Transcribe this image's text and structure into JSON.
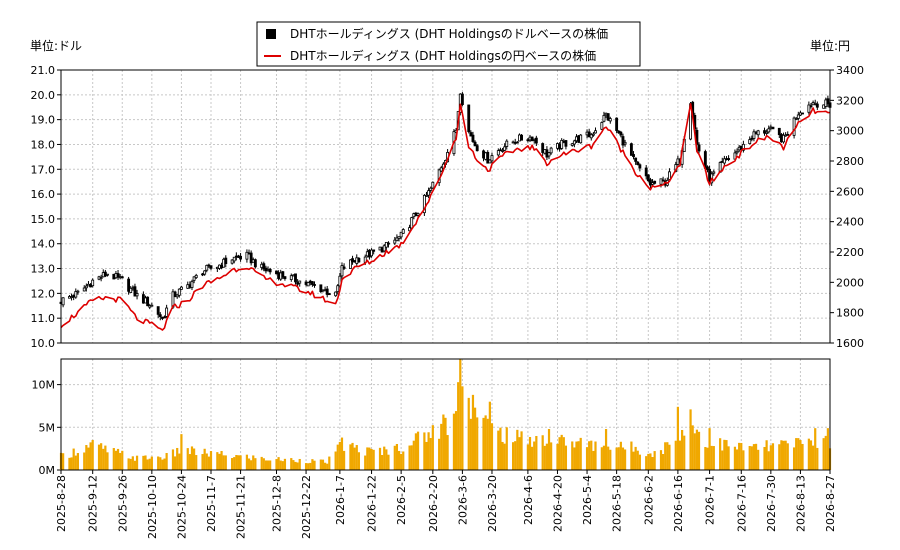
{
  "legend": {
    "items": [
      {
        "label": "DHTホールディングス (DHT Holdingsのドルベースの株価",
        "color": "#000000",
        "marker": "square"
      },
      {
        "label": "DHTホールディングス (DHT Holdingsの円ベースの株価",
        "color": "#dd0000",
        "marker": "line"
      }
    ]
  },
  "chart_data": [
    {
      "type": "candlestick",
      "y_left_label": "単位:ドル",
      "y_right_label": "単位:円",
      "ylim_left": [
        10.0,
        21.0
      ],
      "ylim_right": [
        1600,
        3400
      ],
      "yticks_left": [
        "21.0",
        "20.0",
        "19.0",
        "18.0",
        "17.0",
        "16.0",
        "15.0",
        "14.0",
        "13.0",
        "12.0",
        "11.0",
        "10.0"
      ],
      "yticks_right": [
        "3400",
        "3200",
        "3000",
        "2800",
        "2600",
        "2400",
        "2200",
        "2000",
        "1800",
        "1600"
      ],
      "grid": true,
      "series": [
        {
          "name": "DHTホールディングス (DHT Holdingsのドルベースの株価",
          "color": "#000000",
          "close_anchors": [
            [
              "2025-08-28",
              11.7
            ],
            [
              "2025-09-05",
              12.0
            ],
            [
              "2025-09-12",
              12.5
            ],
            [
              "2025-09-19",
              12.8
            ],
            [
              "2025-09-26",
              12.5
            ],
            [
              "2025-10-03",
              11.9
            ],
            [
              "2025-10-10",
              11.5
            ],
            [
              "2025-10-15",
              11.0
            ],
            [
              "2025-10-20",
              11.9
            ],
            [
              "2025-10-27",
              12.3
            ],
            [
              "2025-11-03",
              12.9
            ],
            [
              "2025-11-10",
              13.1
            ],
            [
              "2025-11-17",
              13.4
            ],
            [
              "2025-11-24",
              13.5
            ],
            [
              "2025-12-01",
              13.0
            ],
            [
              "2025-12-08",
              12.8
            ],
            [
              "2025-12-15",
              12.6
            ],
            [
              "2025-12-22",
              12.4
            ],
            [
              "2025-12-29",
              12.2
            ],
            [
              "2026-01-05",
              11.9
            ],
            [
              "2026-01-08",
              13.0
            ],
            [
              "2026-01-15",
              13.4
            ],
            [
              "2026-01-22",
              13.6
            ],
            [
              "2026-01-29",
              13.9
            ],
            [
              "2026-02-05",
              14.3
            ],
            [
              "2026-02-12",
              15.2
            ],
            [
              "2026-02-19",
              16.2
            ],
            [
              "2026-02-26",
              17.5
            ],
            [
              "2026-03-03",
              18.6
            ],
            [
              "2026-03-05",
              20.2
            ],
            [
              "2026-03-09",
              18.5
            ],
            [
              "2026-03-12",
              18.0
            ],
            [
              "2026-03-18",
              17.4
            ],
            [
              "2026-03-25",
              17.9
            ],
            [
              "2026-04-01",
              18.2
            ],
            [
              "2026-04-08",
              18.3
            ],
            [
              "2026-04-15",
              17.6
            ],
            [
              "2026-04-22",
              18.0
            ],
            [
              "2026-04-29",
              18.2
            ],
            [
              "2026-05-06",
              18.4
            ],
            [
              "2026-05-13",
              19.2
            ],
            [
              "2026-05-20",
              18.3
            ],
            [
              "2026-05-27",
              17.2
            ],
            [
              "2026-06-03",
              16.4
            ],
            [
              "2026-06-10",
              16.5
            ],
            [
              "2026-06-17",
              17.4
            ],
            [
              "2026-06-22",
              19.8
            ],
            [
              "2026-06-25",
              18.0
            ],
            [
              "2026-07-01",
              16.6
            ],
            [
              "2026-07-08",
              17.3
            ],
            [
              "2026-07-15",
              17.8
            ],
            [
              "2026-07-22",
              18.4
            ],
            [
              "2026-07-29",
              18.6
            ],
            [
              "2026-08-05",
              18.2
            ],
            [
              "2026-08-12",
              19.3
            ],
            [
              "2026-08-19",
              19.7
            ],
            [
              "2026-08-27",
              19.6
            ]
          ]
        },
        {
          "name": "DHTホールディングス (DHT Holdingsの円ベースの株価",
          "color": "#dd0000",
          "close_anchors": [
            [
              "2025-08-28",
              1720
            ],
            [
              "2025-09-05",
              1800
            ],
            [
              "2025-09-12",
              1880
            ],
            [
              "2025-09-19",
              1900
            ],
            [
              "2025-09-26",
              1880
            ],
            [
              "2025-10-03",
              1760
            ],
            [
              "2025-10-10",
              1720
            ],
            [
              "2025-10-15",
              1680
            ],
            [
              "2025-10-20",
              1830
            ],
            [
              "2025-10-27",
              1880
            ],
            [
              "2025-11-03",
              1980
            ],
            [
              "2025-11-10",
              2020
            ],
            [
              "2025-11-17",
              2080
            ],
            [
              "2025-11-24",
              2110
            ],
            [
              "2025-12-01",
              2030
            ],
            [
              "2025-12-08",
              2000
            ],
            [
              "2025-12-15",
              1970
            ],
            [
              "2025-12-22",
              1940
            ],
            [
              "2025-12-29",
              1900
            ],
            [
              "2026-01-05",
              1850
            ],
            [
              "2026-01-08",
              2020
            ],
            [
              "2026-01-15",
              2100
            ],
            [
              "2026-01-22",
              2140
            ],
            [
              "2026-01-29",
              2200
            ],
            [
              "2026-02-05",
              2250
            ],
            [
              "2026-02-12",
              2400
            ],
            [
              "2026-02-19",
              2560
            ],
            [
              "2026-02-26",
              2780
            ],
            [
              "2026-03-03",
              2960
            ],
            [
              "2026-03-05",
              3170
            ],
            [
              "2026-03-09",
              2900
            ],
            [
              "2026-03-12",
              2830
            ],
            [
              "2026-03-18",
              2740
            ],
            [
              "2026-03-25",
              2830
            ],
            [
              "2026-04-01",
              2880
            ],
            [
              "2026-04-08",
              2890
            ],
            [
              "2026-04-15",
              2790
            ],
            [
              "2026-04-22",
              2840
            ],
            [
              "2026-04-29",
              2870
            ],
            [
              "2026-05-06",
              2900
            ],
            [
              "2026-05-13",
              3030
            ],
            [
              "2026-05-20",
              2880
            ],
            [
              "2026-05-27",
              2730
            ],
            [
              "2026-06-03",
              2620
            ],
            [
              "2026-06-10",
              2640
            ],
            [
              "2026-06-17",
              2780
            ],
            [
              "2026-06-22",
              3170
            ],
            [
              "2026-06-25",
              2880
            ],
            [
              "2026-07-01",
              2650
            ],
            [
              "2026-07-08",
              2760
            ],
            [
              "2026-07-15",
              2840
            ],
            [
              "2026-07-22",
              2920
            ],
            [
              "2026-07-29",
              2960
            ],
            [
              "2026-08-05",
              2890
            ],
            [
              "2026-08-12",
              3040
            ],
            [
              "2026-08-19",
              3130
            ],
            [
              "2026-08-27",
              3110
            ]
          ]
        }
      ]
    },
    {
      "type": "bar",
      "series_name": "volume",
      "color": "#f0a800",
      "ylim": [
        0,
        13000000
      ],
      "yticks": [
        "10M",
        "5M",
        "0M"
      ],
      "volume_anchors": [
        [
          "2025-08-28",
          1500000
        ],
        [
          "2025-09-12",
          2800000
        ],
        [
          "2025-09-19",
          2200000
        ],
        [
          "2025-10-03",
          1300000
        ],
        [
          "2025-10-17",
          1500000
        ],
        [
          "2025-10-24",
          2200000
        ],
        [
          "2025-11-07",
          1800000
        ],
        [
          "2025-11-21",
          1500000
        ],
        [
          "2025-12-05",
          1200000
        ],
        [
          "2025-12-19",
          1100000
        ],
        [
          "2026-01-01",
          900000
        ],
        [
          "2026-01-08",
          2800000
        ],
        [
          "2026-01-22",
          2000000
        ],
        [
          "2026-02-05",
          2500000
        ],
        [
          "2026-02-19",
          4200000
        ],
        [
          "2026-02-28",
          5200000
        ],
        [
          "2026-03-05",
          9500000
        ],
        [
          "2026-03-10",
          7000000
        ],
        [
          "2026-03-20",
          4500000
        ],
        [
          "2026-04-01",
          3500000
        ],
        [
          "2026-04-15",
          3500000
        ],
        [
          "2026-04-29",
          3000000
        ],
        [
          "2026-05-13",
          2600000
        ],
        [
          "2026-05-27",
          2500000
        ],
        [
          "2026-06-05",
          1800000
        ],
        [
          "2026-06-16",
          3500000
        ],
        [
          "2026-06-22",
          5000000
        ],
        [
          "2026-06-30",
          3200000
        ],
        [
          "2026-07-15",
          2500000
        ],
        [
          "2026-07-29",
          2600000
        ],
        [
          "2026-08-12",
          3000000
        ],
        [
          "2026-08-27",
          3200000
        ]
      ],
      "volume_spikes": [
        [
          "2025-10-24",
          4200000
        ],
        [
          "2026-01-08",
          3800000
        ],
        [
          "2026-02-16",
          4400000
        ],
        [
          "2026-02-25",
          6500000
        ],
        [
          "2026-03-02",
          6600000
        ],
        [
          "2026-03-05",
          13000000
        ],
        [
          "2026-03-06",
          9800000
        ],
        [
          "2026-03-11",
          8800000
        ],
        [
          "2026-03-19",
          8000000
        ],
        [
          "2026-04-16",
          4800000
        ],
        [
          "2026-05-13",
          4800000
        ],
        [
          "2026-06-16",
          7400000
        ],
        [
          "2026-06-22",
          7100000
        ],
        [
          "2026-07-01",
          4900000
        ],
        [
          "2026-08-20",
          4900000
        ],
        [
          "2026-08-26",
          4900000
        ]
      ]
    }
  ],
  "x_axis": {
    "start": "2025-08-28",
    "end": "2026-08-27",
    "tick_labels": [
      "2025-8-28",
      "2025-9-12",
      "2025-9-26",
      "2025-10-10",
      "2025-10-24",
      "2025-11-7",
      "2025-11-21",
      "2025-12-8",
      "2025-12-22",
      "2026-1-7",
      "2026-1-22",
      "2026-2-5",
      "2026-2-20",
      "2026-3-6",
      "2026-3-20",
      "2026-4-6",
      "2026-4-20",
      "2026-5-4",
      "2026-5-18",
      "2026-6-2",
      "2026-6-16",
      "2026-7-1",
      "2026-7-16",
      "2026-7-30",
      "2026-8-13",
      "2026-8-27"
    ]
  }
}
